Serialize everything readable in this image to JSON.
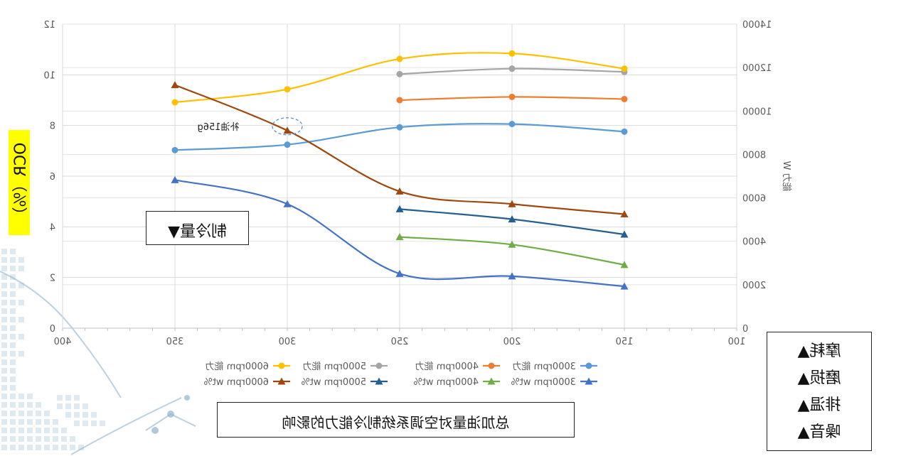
{
  "chart_data": {
    "type": "line",
    "mirrored": true,
    "x_ticks": [
      400,
      350,
      300,
      250,
      200,
      150,
      100
    ],
    "xlim": [
      400,
      100
    ],
    "y_left": {
      "ylim": [
        0,
        12
      ],
      "ticks": [
        0,
        2,
        4,
        6,
        8,
        10,
        12
      ],
      "label": "OCR（%）"
    },
    "y_right": {
      "ylim": [
        0,
        14000
      ],
      "ticks": [
        0,
        2000,
        4000,
        6000,
        8000,
        10000,
        12000,
        14000
      ],
      "label": "能力 W"
    },
    "series": [
      {
        "name": "3000rpm 能力",
        "axis": "right",
        "marker": "circle",
        "color": "#5b9bd5",
        "points": [
          [
            350,
            8200
          ],
          [
            300,
            8450
          ],
          [
            250,
            9250
          ],
          [
            200,
            9400
          ],
          [
            150,
            9050
          ]
        ]
      },
      {
        "name": "4000rpm 能力",
        "axis": "right",
        "marker": "circle",
        "color": "#ed7d31",
        "points": [
          [
            250,
            10500
          ],
          [
            200,
            10650
          ],
          [
            150,
            10550
          ]
        ]
      },
      {
        "name": "5000rpm 能力",
        "axis": "right",
        "marker": "circle",
        "color": "#a5a5a5",
        "points": [
          [
            250,
            11700
          ],
          [
            200,
            11950
          ],
          [
            150,
            11800
          ]
        ]
      },
      {
        "name": "6000rpm 能力",
        "axis": "right",
        "marker": "circle",
        "color": "#ffc000",
        "points": [
          [
            350,
            10400
          ],
          [
            300,
            11000
          ],
          [
            250,
            12400
          ],
          [
            200,
            12650
          ],
          [
            150,
            11950
          ]
        ]
      },
      {
        "name": "3000rpm wt%",
        "axis": "left",
        "marker": "triangle",
        "color": "#4472c4",
        "points": [
          [
            350,
            5.85
          ],
          [
            300,
            4.9
          ],
          [
            250,
            2.15
          ],
          [
            200,
            2.05
          ],
          [
            150,
            1.65
          ]
        ]
      },
      {
        "name": "4000rpm wt%",
        "axis": "left",
        "marker": "triangle",
        "color": "#70ad47",
        "points": [
          [
            250,
            3.6
          ],
          [
            200,
            3.3
          ],
          [
            150,
            2.5
          ]
        ]
      },
      {
        "name": "5000rpm wt%",
        "axis": "left",
        "marker": "triangle",
        "color": "#255e91",
        "points": [
          [
            250,
            4.7
          ],
          [
            200,
            4.3
          ],
          [
            150,
            3.7
          ]
        ]
      },
      {
        "name": "6000rpm wt%",
        "axis": "left",
        "marker": "triangle",
        "color": "#9e480e",
        "points": [
          [
            350,
            9.6
          ],
          [
            300,
            7.8
          ],
          [
            250,
            5.4
          ],
          [
            200,
            4.9
          ],
          [
            150,
            4.5
          ]
        ]
      }
    ],
    "legend_position": "bottom",
    "grid": true,
    "annotation": {
      "text": "补油156g",
      "x": 300,
      "y": 7.8
    }
  },
  "labels": {
    "ocr_axis": "OCR（%）",
    "cooling": "制冷量▼",
    "title": "总加油量对空调系统制冷能力的影响"
  },
  "right_list": [
    "摩耗▲",
    "磨损▲",
    "排温▲",
    "噪音▲"
  ]
}
